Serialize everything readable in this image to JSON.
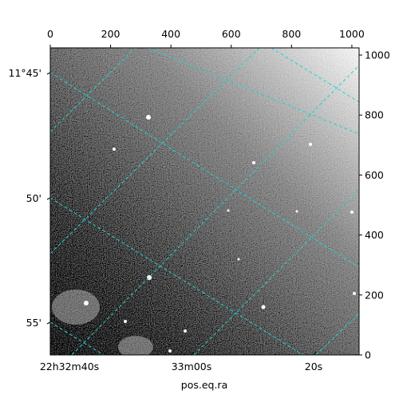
{
  "chart_data": {
    "type": "image",
    "xlabel": "pos.eq.ra",
    "xlim": [
      0,
      1024
    ],
    "ylim": [
      0,
      1024
    ],
    "xticks": [
      0,
      200,
      400,
      600,
      800,
      1000
    ],
    "yticks": [
      0,
      200,
      400,
      600,
      800,
      1000
    ],
    "ra_labels": [
      "22h32m40s",
      "33m00s",
      "20s"
    ],
    "dec_labels": [
      "11°45'",
      "50'",
      "55'"
    ]
  }
}
